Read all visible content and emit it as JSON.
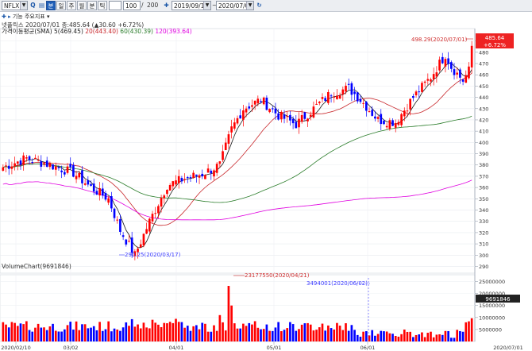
{
  "toolbar": {
    "symbol": "NFLX",
    "search_glyph": "Q",
    "period_buttons": [
      "분",
      "일",
      "주",
      "월",
      "분",
      "틱"
    ],
    "count_value": "100",
    "count_sep": "/",
    "count_total": "200",
    "date_start": "2019/09/17",
    "date_end": "2020/07/01",
    "sub_tools": [
      "기능",
      "주요지표"
    ]
  },
  "legend": {
    "line1": "넷플릭스 2020/07/01 종:485.64 (▲30.60 +6.72%)",
    "ma_label": "가격이동평균(SMA) 5(469.45)",
    "ma20": "20(443.40)",
    "ma60": "60(430.39)",
    "ma120": "120(393.64)",
    "volume_label": "VolumeChart(9691846)"
  },
  "annotations": {
    "high": "498.29(2020/07/01)",
    "low": "290.25(2020/03/17)",
    "vol_high": "23177550(2020/04/21)",
    "vol_mark": "3494001(2020/06/02)"
  },
  "price_badge": {
    "price": "485.64",
    "change": "+6.72%"
  },
  "volume_badge": "9691846",
  "chart_data": [
    {
      "type": "candlestick",
      "price_ticks": [
        290,
        300,
        310,
        320,
        330,
        340,
        350,
        360,
        370,
        380,
        390,
        400,
        410,
        420,
        430,
        440,
        450,
        460,
        470,
        480,
        490
      ],
      "ylim": [
        284,
        501
      ],
      "x_ticks": [
        "2020/02/10",
        "03/02",
        "04/01",
        "05/01",
        "06/01",
        "2020/07/01"
      ],
      "series": [
        {
          "name": "5(469.45)",
          "color": "#1a1a1a"
        },
        {
          "name": "20(443.40)",
          "color": "#c8262a"
        },
        {
          "name": "60(430.39)",
          "color": "#2b7d2b"
        },
        {
          "name": "120(393.64)",
          "color": "#e000e0"
        }
      ],
      "colors": {
        "up": "#ff0000",
        "down": "#0000ff"
      }
    },
    {
      "type": "bar",
      "name": "VolumeChart(9691846)",
      "volume_ticks": [
        "5000000",
        "10000000",
        "15000000",
        "20000000",
        "25000000"
      ],
      "ylim": [
        0,
        26500000
      ]
    }
  ]
}
